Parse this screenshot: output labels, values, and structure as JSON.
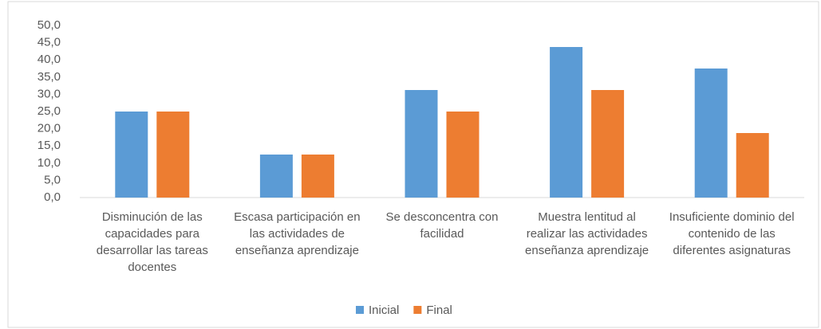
{
  "chart_data": {
    "type": "bar",
    "categories": [
      "Disminución de las capacidades para desarrollar las tareas docentes",
      "Escasa participación en las actividades de enseñanza aprendizaje",
      "Se desconcentra con facilidad",
      "Muestra lentitud al realizar las actividades enseñanza aprendizaje",
      "Insuficiente dominio del contenido de las diferentes asignaturas"
    ],
    "series": [
      {
        "name": "Inicial",
        "color": "#5b9bd5",
        "values": [
          25,
          12.5,
          31.25,
          43.75,
          37.5
        ]
      },
      {
        "name": "Final",
        "color": "#ed7d31",
        "values": [
          25,
          12.5,
          25,
          31.25,
          18.75
        ]
      }
    ],
    "ylim": [
      0,
      50
    ],
    "yticks": [
      {
        "value": 0,
        "label": "0,0"
      },
      {
        "value": 5,
        "label": "5,0"
      },
      {
        "value": 10,
        "label": "10,0"
      },
      {
        "value": 15,
        "label": "15,0"
      },
      {
        "value": 20,
        "label": "20,0"
      },
      {
        "value": 25,
        "label": "25,0"
      },
      {
        "value": 30,
        "label": "30,0"
      },
      {
        "value": 35,
        "label": "35,0"
      },
      {
        "value": 40,
        "label": "40,0"
      },
      {
        "value": 45,
        "label": "45,0"
      },
      {
        "value": 50,
        "label": "50,0"
      }
    ],
    "grid": false,
    "legend": "bottom"
  }
}
